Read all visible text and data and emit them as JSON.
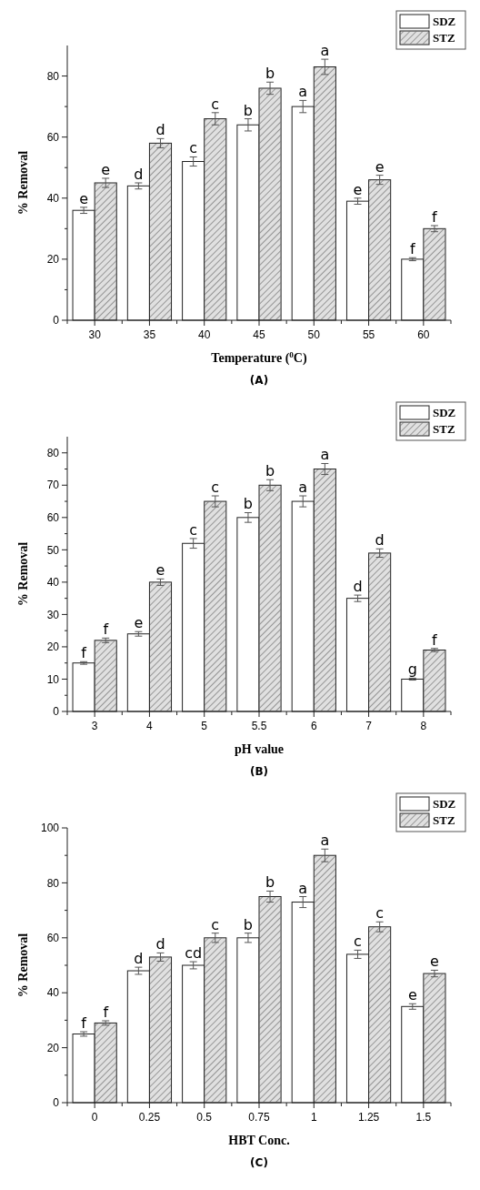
{
  "chart_data": [
    {
      "type": "bar",
      "xlabel": "Temperature ($^{0}$C)",
      "ylabel": "% Removal",
      "categories": [
        "30",
        "35",
        "40",
        "45",
        "50",
        "55",
        "60"
      ],
      "ylim": [
        0,
        90
      ],
      "yticks": [
        0,
        {
          "value": 10,
          "label": null
        },
        20,
        {
          "value": 30,
          "label": null
        },
        40,
        {
          "value": 50,
          "label": null
        },
        60,
        {
          "value": 70,
          "label": null
        },
        80
      ],
      "legend": "top right",
      "series": [
        {
          "name": "SDZ",
          "color": "#ffffff",
          "values": [
            36,
            44,
            52,
            64,
            70,
            39,
            20
          ],
          "errors": [
            1,
            1,
            1.5,
            2,
            2,
            1,
            0.5
          ]
        },
        {
          "name": "STZ",
          "color": "#e0e0e0",
          "values": [
            45,
            58,
            66,
            76,
            83,
            46,
            30
          ],
          "errors": [
            1.5,
            1.5,
            2,
            2,
            2.5,
            1.5,
            1
          ]
        }
      ],
      "annotations": [
        {
          "text": "e",
          "x": "30",
          "y": 36
        },
        {
          "text": "e",
          "x": "30",
          "y": 45
        },
        {
          "text": "d",
          "x": "35",
          "y": 44
        },
        {
          "text": "d",
          "x": "35",
          "y": 58
        },
        {
          "text": "c",
          "x": "40",
          "y": 52
        },
        {
          "text": "c",
          "x": "40",
          "y": 66
        },
        {
          "text": "b",
          "x": "45",
          "y": 64
        },
        {
          "text": "b",
          "x": "45",
          "y": 76
        },
        {
          "text": "a",
          "x": "50",
          "y": 70
        },
        {
          "text": "a",
          "x": "50",
          "y": 83
        },
        {
          "text": "e",
          "x": "55",
          "y": 39
        },
        {
          "text": "e",
          "x": "55",
          "y": 46
        },
        {
          "text": "f",
          "x": "60",
          "y": 20
        },
        {
          "text": "f",
          "x": "60",
          "y": 30
        },
        "(A)"
      ]
    },
    {
      "type": "bar",
      "xlabel": "pH value",
      "ylabel": "% Removal",
      "categories": [
        "3",
        "4",
        "5",
        "5.5",
        "6",
        "7",
        "8"
      ],
      "ylim": [
        0,
        85
      ],
      "yticks": [
        0,
        {
          "value": 5,
          "label": null
        },
        10,
        {
          "value": 15,
          "label": null
        },
        20,
        {
          "value": 25,
          "label": null
        },
        30,
        {
          "value": 35,
          "label": null
        },
        40,
        {
          "value": 45,
          "label": null
        },
        50,
        {
          "value": 55,
          "label": null
        },
        60,
        {
          "value": 65,
          "label": null
        },
        70,
        {
          "value": 75,
          "label": null
        },
        80
      ],
      "legend": "top right",
      "series": [
        {
          "name": "SDZ",
          "color": "#ffffff",
          "values": [
            15,
            24,
            52,
            60,
            65,
            35,
            10
          ],
          "errors": [
            0.4,
            0.7,
            1.5,
            1.5,
            1.7,
            1,
            0.3
          ]
        },
        {
          "name": "STZ",
          "color": "#e0e0e0",
          "values": [
            22,
            40,
            65,
            70,
            75,
            49,
            19
          ],
          "errors": [
            0.7,
            1,
            1.7,
            1.7,
            1.7,
            1.3,
            0.5
          ]
        }
      ],
      "annotations": [
        {
          "text": "f",
          "x": "3",
          "y": 15
        },
        {
          "text": "f",
          "x": "3",
          "y": 22
        },
        {
          "text": "e",
          "x": "4",
          "y": 24
        },
        {
          "text": "e",
          "x": "4",
          "y": 40
        },
        {
          "text": "c",
          "x": "5",
          "y": 52
        },
        {
          "text": "c",
          "x": "5",
          "y": 65
        },
        {
          "text": "b",
          "x": "5.5",
          "y": 60
        },
        {
          "text": "b",
          "x": "5.5",
          "y": 70
        },
        {
          "text": "a",
          "x": "6",
          "y": 65
        },
        {
          "text": "a",
          "x": "6",
          "y": 75
        },
        {
          "text": "d",
          "x": "7",
          "y": 35
        },
        {
          "text": "d",
          "x": "7",
          "y": 49
        },
        {
          "text": "g",
          "x": "8",
          "y": 10
        },
        {
          "text": "f",
          "x": "8",
          "y": 19
        },
        "(B)"
      ]
    },
    {
      "type": "bar",
      "xlabel": "HBT Conc.",
      "ylabel": "% Removal",
      "categories": [
        "0",
        "0.25",
        "0.5",
        "0.75",
        "1",
        "1.25",
        "1.5"
      ],
      "ylim": [
        0,
        100
      ],
      "yticks": [
        0,
        {
          "value": 10,
          "label": null
        },
        20,
        {
          "value": 30,
          "label": null
        },
        40,
        {
          "value": 50,
          "label": null
        },
        60,
        {
          "value": 70,
          "label": null
        },
        80,
        {
          "value": 90,
          "label": null
        },
        100
      ],
      "legend": "top right",
      "series": [
        {
          "name": "SDZ",
          "color": "#ffffff",
          "values": [
            25,
            48,
            50,
            60,
            73,
            54,
            35
          ],
          "errors": [
            0.8,
            1.3,
            1.3,
            1.7,
            2,
            1.5,
            1
          ]
        },
        {
          "name": "STZ",
          "color": "#e0e0e0",
          "values": [
            29,
            53,
            60,
            75,
            90,
            64,
            47
          ],
          "errors": [
            0.8,
            1.5,
            1.7,
            2,
            2.3,
            1.8,
            1.2
          ]
        }
      ],
      "annotations": [
        {
          "text": "f",
          "x": "0",
          "y": 25
        },
        {
          "text": "f",
          "x": "0",
          "y": 29
        },
        {
          "text": "d",
          "x": "0.25",
          "y": 48
        },
        {
          "text": "d",
          "x": "0.25",
          "y": 53
        },
        {
          "text": "cd",
          "x": "0.5",
          "y": 50
        },
        {
          "text": "c",
          "x": "0.5",
          "y": 60
        },
        {
          "text": "b",
          "x": "0.75",
          "y": 60
        },
        {
          "text": "b",
          "x": "0.75",
          "y": 75
        },
        {
          "text": "a",
          "x": "1",
          "y": 73
        },
        {
          "text": "a",
          "x": "1",
          "y": 90
        },
        {
          "text": "c",
          "x": "1.25",
          "y": 54
        },
        {
          "text": "c",
          "x": "1.25",
          "y": 64
        },
        {
          "text": "e",
          "x": "1.5",
          "y": 35
        },
        {
          "text": "e",
          "x": "1.5",
          "y": 47
        },
        "(C)"
      ]
    }
  ]
}
